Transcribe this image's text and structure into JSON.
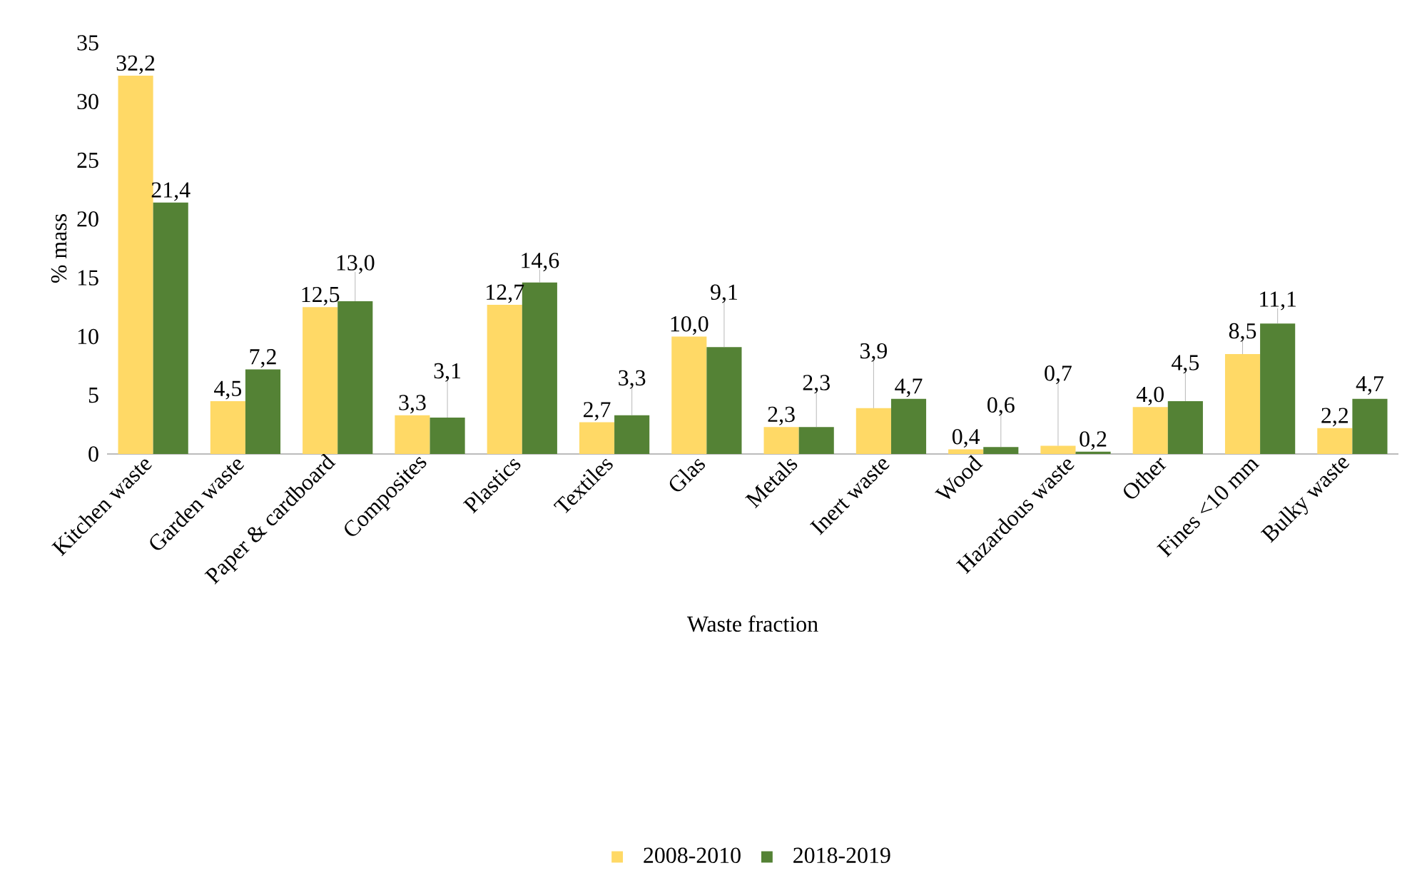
{
  "chart_data": {
    "type": "bar",
    "xlabel": "Waste fraction",
    "ylabel": "% mass",
    "categories": [
      "Kitchen waste",
      "Garden waste",
      "Paper & cardboard",
      "Composites",
      "Plastics",
      "Textiles",
      "Glas",
      "Metals",
      "Inert waste",
      "Wood",
      "Hazardous waste",
      "Other",
      "Fines <10 mm",
      "Bulky waste"
    ],
    "series": [
      {
        "name": "2008-2010",
        "color": "#ffd966",
        "values": [
          32.2,
          4.5,
          12.5,
          3.3,
          12.7,
          2.7,
          10.0,
          2.3,
          3.9,
          0.4,
          0.7,
          4.0,
          8.5,
          2.2
        ],
        "value_labels": [
          "32,2",
          "4,5",
          "12,5",
          "3,3",
          "12,7",
          "2,7",
          "10,0",
          "2,3",
          "3,9",
          "0,4",
          "0,7",
          "4,0",
          "8,5",
          "2,2"
        ]
      },
      {
        "name": "2018-2019",
        "color": "#548235",
        "values": [
          21.4,
          7.2,
          13.0,
          3.1,
          14.6,
          3.3,
          9.1,
          2.3,
          4.7,
          0.6,
          0.2,
          4.5,
          11.1,
          4.7
        ],
        "value_labels": [
          "21,4",
          "7,2",
          "13,0",
          "3,1",
          "14,6",
          "3,3",
          "9,1",
          "2,3",
          "4,7",
          "0,6",
          "0,2",
          "4,5",
          "11,1",
          "4,7"
        ]
      }
    ],
    "ylim": [
      0,
      35
    ],
    "yticks": [
      0,
      5,
      10,
      15,
      20,
      25,
      30,
      35
    ],
    "grid": false,
    "legend": "bottom"
  }
}
